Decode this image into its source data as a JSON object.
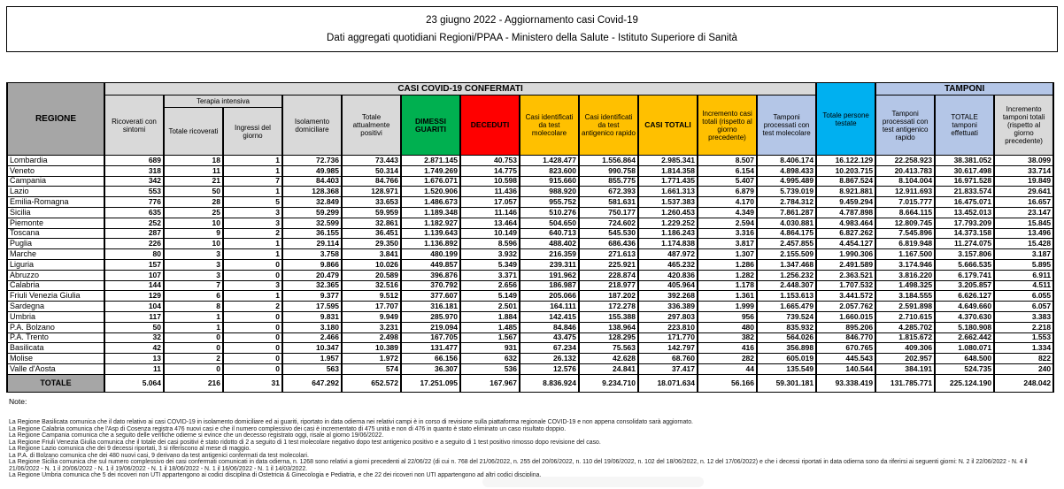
{
  "title": {
    "line1": "23 giugno 2022 - Aggiornamento casi Covid-19",
    "line2": "Dati aggregati quotidiani Regioni/PPAA - Ministero della Salute - Istituto Superiore di Sanità"
  },
  "colors": {
    "green": "#00b050",
    "red": "#ff0000",
    "orange": "#ffc000",
    "cyan": "#00b0f0",
    "light_blue": "#b4c6e7",
    "gray_dark": "#a6a6a6",
    "gray_light": "#d9d9d9"
  },
  "table": {
    "header": {
      "regione": "REGIONE",
      "casi_confermati": "CASI COVID-19 CONFERMATI",
      "tamponi_group": "TAMPONI",
      "ricoverati": "Ricoverati con sintomi",
      "terapia_intensiva": "Terapia intensiva",
      "totale_ricoverati": "Totale ricoverati",
      "ingressi_giorno": "Ingressi del giorno",
      "isolamento": "Isolamento domiciliare",
      "attualmente_positivi": "Totale attualmente positivi",
      "dimessi_guariti": "DIMESSI GUARITI",
      "deceduti": "DECEDUTI",
      "casi_molecolare": "Casi identificati da test molecolare",
      "casi_antigenico": "Casi identificati da test antigenico rapido",
      "casi_totali": "CASI TOTALI",
      "incremento_casi": "Incremento casi totali (rispetto al giorno precedente)",
      "persone_testate": "Totale persone testate",
      "tamponi_molecolare": "Tamponi processati con test molecolare",
      "tamponi_antigenico": "Tamponi processati con test antigenico rapido",
      "totale_tamponi": "TOTALE tamponi effettuati",
      "incremento_tamponi": "Incremento tamponi totali (rispetto al giorno precedente)"
    },
    "rows": [
      {
        "regione": "Lombardia",
        "values": [
          "689",
          "18",
          "1",
          "72.736",
          "73.443",
          "2.871.145",
          "40.753",
          "1.428.477",
          "1.556.864",
          "2.985.341",
          "8.507",
          "8.406.174",
          "16.122.129",
          "22.258.923",
          "38.381.052",
          "38.099"
        ]
      },
      {
        "regione": "Veneto",
        "values": [
          "318",
          "11",
          "1",
          "49.985",
          "50.314",
          "1.749.269",
          "14.775",
          "823.600",
          "990.758",
          "1.814.358",
          "6.154",
          "4.898.433",
          "10.203.715",
          "20.413.783",
          "30.617.498",
          "33.714"
        ]
      },
      {
        "regione": "Campania",
        "values": [
          "342",
          "21",
          "7",
          "84.403",
          "84.766",
          "1.676.071",
          "10.598",
          "915.660",
          "855.775",
          "1.771.435",
          "5.407",
          "4.995.489",
          "8.867.524",
          "8.104.004",
          "16.971.528",
          "19.849"
        ]
      },
      {
        "regione": "Lazio",
        "values": [
          "553",
          "50",
          "1",
          "128.368",
          "128.971",
          "1.520.906",
          "11.436",
          "988.920",
          "672.393",
          "1.661.313",
          "6.879",
          "5.739.019",
          "8.921.881",
          "12.911.693",
          "21.833.574",
          "29.641"
        ]
      },
      {
        "regione": "Emilia-Romagna",
        "values": [
          "776",
          "28",
          "5",
          "32.849",
          "33.653",
          "1.486.673",
          "17.057",
          "955.752",
          "581.631",
          "1.537.383",
          "4.170",
          "2.784.312",
          "9.459.294",
          "7.015.777",
          "16.475.071",
          "16.657"
        ]
      },
      {
        "regione": "Sicilia",
        "values": [
          "635",
          "25",
          "3",
          "59.299",
          "59.959",
          "1.189.348",
          "11.146",
          "510.276",
          "750.177",
          "1.260.453",
          "4.349",
          "7.861.287",
          "4.787.898",
          "8.664.115",
          "13.452.013",
          "23.147"
        ]
      },
      {
        "regione": "Piemonte",
        "values": [
          "252",
          "10",
          "3",
          "32.599",
          "32.861",
          "1.182.927",
          "13.464",
          "504.650",
          "724.602",
          "1.229.252",
          "2.594",
          "4.030.881",
          "4.983.464",
          "12.809.745",
          "17.793.209",
          "15.845"
        ]
      },
      {
        "regione": "Toscana",
        "values": [
          "287",
          "9",
          "2",
          "36.155",
          "36.451",
          "1.139.643",
          "10.149",
          "640.713",
          "545.530",
          "1.186.243",
          "3.316",
          "4.864.175",
          "6.827.262",
          "7.545.896",
          "14.373.158",
          "13.496"
        ]
      },
      {
        "regione": "Puglia",
        "values": [
          "226",
          "10",
          "1",
          "29.114",
          "29.350",
          "1.136.892",
          "8.596",
          "488.402",
          "686.436",
          "1.174.838",
          "3.817",
          "2.457.855",
          "4.454.127",
          "6.819.948",
          "11.274.075",
          "15.428"
        ]
      },
      {
        "regione": "Marche",
        "values": [
          "80",
          "3",
          "1",
          "3.758",
          "3.841",
          "480.199",
          "3.932",
          "216.359",
          "271.613",
          "487.972",
          "1.307",
          "2.155.509",
          "1.990.306",
          "1.167.500",
          "3.157.806",
          "3.187"
        ]
      },
      {
        "regione": "Liguria",
        "values": [
          "157",
          "3",
          "0",
          "9.866",
          "10.026",
          "449.857",
          "5.349",
          "239.311",
          "225.921",
          "465.232",
          "1.286",
          "1.347.468",
          "2.491.589",
          "3.174.946",
          "5.666.535",
          "5.895"
        ]
      },
      {
        "regione": "Abruzzo",
        "values": [
          "107",
          "3",
          "0",
          "20.479",
          "20.589",
          "396.876",
          "3.371",
          "191.962",
          "228.874",
          "420.836",
          "1.282",
          "1.256.232",
          "2.363.521",
          "3.816.220",
          "6.179.741",
          "6.911"
        ]
      },
      {
        "regione": "Calabria",
        "values": [
          "144",
          "7",
          "3",
          "32.365",
          "32.516",
          "370.792",
          "2.656",
          "186.987",
          "218.977",
          "405.964",
          "1.178",
          "2.448.307",
          "1.707.532",
          "1.498.325",
          "3.205.857",
          "4.511"
        ]
      },
      {
        "regione": "Friuli Venezia Giulia",
        "values": [
          "129",
          "6",
          "1",
          "9.377",
          "9.512",
          "377.607",
          "5.149",
          "205.066",
          "187.202",
          "392.268",
          "1.361",
          "1.153.613",
          "3.441.572",
          "3.184.555",
          "6.626.127",
          "6.055"
        ]
      },
      {
        "regione": "Sardegna",
        "values": [
          "104",
          "8",
          "2",
          "17.595",
          "17.707",
          "316.181",
          "2.501",
          "164.111",
          "172.278",
          "336.389",
          "1.999",
          "1.665.479",
          "2.057.762",
          "2.591.898",
          "4.649.660",
          "6.057"
        ]
      },
      {
        "regione": "Umbria",
        "values": [
          "117",
          "1",
          "0",
          "9.831",
          "9.949",
          "285.970",
          "1.884",
          "142.415",
          "155.388",
          "297.803",
          "956",
          "739.524",
          "1.660.015",
          "2.710.615",
          "4.370.630",
          "3.383"
        ]
      },
      {
        "regione": "P.A. Bolzano",
        "values": [
          "50",
          "1",
          "0",
          "3.180",
          "3.231",
          "219.094",
          "1.485",
          "84.846",
          "138.964",
          "223.810",
          "480",
          "835.932",
          "895.206",
          "4.285.702",
          "5.180.908",
          "2.218"
        ]
      },
      {
        "regione": "P.A. Trento",
        "values": [
          "32",
          "0",
          "0",
          "2.466",
          "2.498",
          "167.705",
          "1.567",
          "43.475",
          "128.295",
          "171.770",
          "382",
          "564.026",
          "846.770",
          "1.815.672",
          "2.662.442",
          "1.553"
        ]
      },
      {
        "regione": "Basilicata",
        "values": [
          "42",
          "0",
          "0",
          "10.347",
          "10.389",
          "131.477",
          "931",
          "67.234",
          "75.563",
          "142.797",
          "416",
          "356.898",
          "670.765",
          "409.306",
          "1.080.071",
          "1.334"
        ]
      },
      {
        "regione": "Molise",
        "values": [
          "13",
          "2",
          "0",
          "1.957",
          "1.972",
          "66.156",
          "632",
          "26.132",
          "42.628",
          "68.760",
          "282",
          "605.019",
          "445.543",
          "202.957",
          "648.500",
          "822"
        ]
      },
      {
        "regione": "Valle d'Aosta",
        "values": [
          "11",
          "0",
          "0",
          "563",
          "574",
          "36.307",
          "536",
          "12.576",
          "24.841",
          "37.417",
          "44",
          "135.549",
          "140.544",
          "384.191",
          "524.735",
          "240"
        ]
      }
    ],
    "totale": {
      "label": "TOTALE",
      "values": [
        "5.064",
        "216",
        "31",
        "647.292",
        "652.572",
        "17.251.095",
        "167.967",
        "8.836.924",
        "9.234.710",
        "18.071.634",
        "56.166",
        "59.301.181",
        "93.338.419",
        "131.785.771",
        "225.124.190",
        "248.042"
      ]
    }
  },
  "notes": {
    "title": "Note:",
    "items": [
      "La Regione Basilicata comunica che il dato relativo ai casi COVID-19 in isolamento domiciliare ed ai guariti, riportato in data odierna nei relativi campi è in corso di revisione sulla piattaforma regionale COVID-19 e non appena consolidato sarà aggiornato.",
      "La Regione Calabria  comunica che l'Asp di Cosenza registra 476 nuovi casi e che il numero complessivo dei casi è incrementato di 475 unità e non di 476 in quanto è stato eliminato un caso risultato doppio.",
      "La Regione Campania comunica che a seguito delle verifiche odierne si evince che un decesso registrato oggi, risale al giorno 19/06/2022.",
      "La Regione Friuli Venezia Giulia comunica che il totale dei casi positivi è stato ridotto di 2 a seguito di 1 test molecolare negativo dopo test antigenico positivo e a seguito di 1 test positivo rimosso dopo revisione del caso.",
      "La Regione Lazio comunica che dei 9 decessi riportati, 3 si riferiscono al mese di maggio.",
      "La P.A. di Bolzano comunica che dei 480 nuovi casi, 9 derivano da test antigenici confermati da test molecolari.",
      "La Regione Sicilia comunica che sul numero complessivo dei casi confermati comunicati in data odierna, n. 1268 sono relativi a giorni precedenti al 22/06/22 (di cui n. 768 del 21/06/2022, n. 255 del 20/06/2022, n. 110 del 19/06/2022, n. 102 del 18/06/2022, n. 12 del 17/06/2022) e che i decessi riportati in data odierna sono da riferirsi ai seguenti giorni: N. 2 il 22/06/2022 - N. 4 il 21/06/2022 - N. 1 il 20/06/2022 - N. 1 il 19/06/2022 - N. 1 il 18/06/2022 - N. 1 il 16/06/2022 - N. 1 il 14/03/2022.",
      "La Regione Umbria comunica che 5 dei ricoveri non UTI appartengono ai codici disciplina di Ostetricia & Ginecologia e Pediatria, e che 22 dei ricoveri non UTI appartengono ad altri codici disciplina."
    ]
  }
}
